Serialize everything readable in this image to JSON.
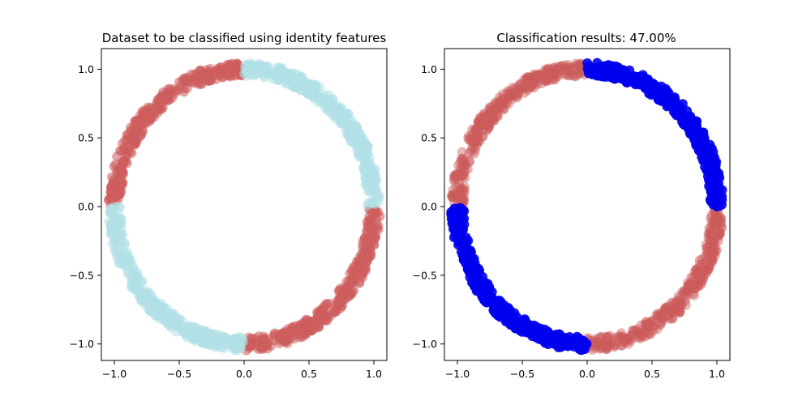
{
  "chart_data": [
    {
      "type": "scatter",
      "title": "Dataset to be classified using identity features",
      "xlim": [
        -1.1,
        1.1
      ],
      "ylim": [
        -1.12,
        1.15
      ],
      "xticks": [
        -1.0,
        -0.5,
        0.0,
        0.5,
        1.0
      ],
      "xtick_labels": [
        "−1.0",
        "−0.5",
        "0.0",
        "0.5",
        "1.0"
      ],
      "yticks": [
        -1.0,
        -0.5,
        0.0,
        0.5,
        1.0
      ],
      "ytick_labels": [
        "−1.0",
        "−0.5",
        "0.0",
        "0.5",
        "1.0"
      ],
      "grid": false,
      "series": [
        {
          "color": "#cd5c5c",
          "alpha": 0.55,
          "arcs": [
            {
              "from_deg": 0,
              "to_deg": -90
            },
            {
              "from_deg": 90,
              "to_deg": 180
            }
          ]
        },
        {
          "color": "#b0e0e6",
          "alpha": 0.55,
          "arcs": [
            {
              "from_deg": 0,
              "to_deg": 90
            },
            {
              "from_deg": 180,
              "to_deg": 270
            }
          ]
        }
      ],
      "radius": 1.0,
      "radial_spread": 0.05,
      "points_per_arc": 320
    },
    {
      "type": "scatter",
      "title": "Classification results: 47.00%",
      "xlim": [
        -1.1,
        1.1
      ],
      "ylim": [
        -1.12,
        1.15
      ],
      "xticks": [
        -1.0,
        -0.5,
        0.0,
        0.5,
        1.0
      ],
      "xtick_labels": [
        "−1.0",
        "−0.5",
        "0.0",
        "0.5",
        "1.0"
      ],
      "yticks": [
        -1.0,
        -0.5,
        0.0,
        0.5,
        1.0
      ],
      "ytick_labels": [
        "−1.0",
        "−0.5",
        "0.0",
        "0.5",
        "1.0"
      ],
      "grid": false,
      "series": [
        {
          "color": "#cd5c5c",
          "alpha": 0.45,
          "arcs": [
            {
              "from_deg": 90,
              "to_deg": 180
            },
            {
              "from_deg": 0,
              "to_deg": -90
            }
          ]
        },
        {
          "color": "#0000ee",
          "alpha": 0.9,
          "arcs": [
            {
              "from_deg": 0,
              "to_deg": 90
            },
            {
              "from_deg": 180,
              "to_deg": 270
            }
          ]
        }
      ],
      "radius": 1.0,
      "radial_spread": 0.05,
      "points_per_arc": 320
    }
  ]
}
